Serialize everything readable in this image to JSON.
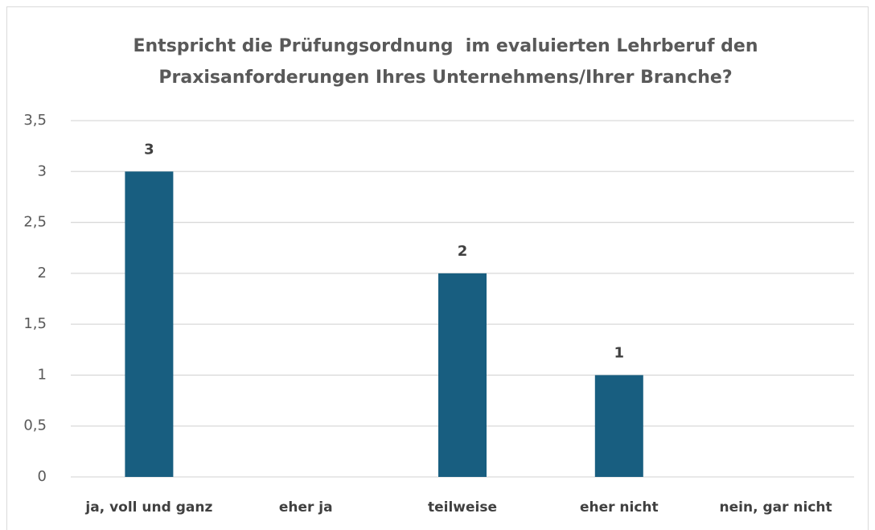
{
  "chart_data": {
    "type": "bar",
    "title": [
      "Entspricht die Prüfungsordnung  im evaluierten Lehrberuf den",
      "Praxisanforderungen Ihres Unternehmens/Ihrer Branche?"
    ],
    "categories": [
      "ja, voll und ganz",
      "eher ja",
      "teilweise",
      "eher nicht",
      "nein, gar nicht"
    ],
    "values": [
      3,
      null,
      2,
      1,
      null
    ],
    "color": "#185e80",
    "ylim": [
      0,
      3.5
    ],
    "yticks": [
      0,
      {
        "value": 0.5,
        "label": "0,5"
      },
      1,
      {
        "value": 1.5,
        "label": "1,5"
      },
      2,
      {
        "value": 2.5,
        "label": "2,5"
      },
      3,
      {
        "value": 3.5,
        "label": "3,5"
      }
    ],
    "grid": true
  }
}
